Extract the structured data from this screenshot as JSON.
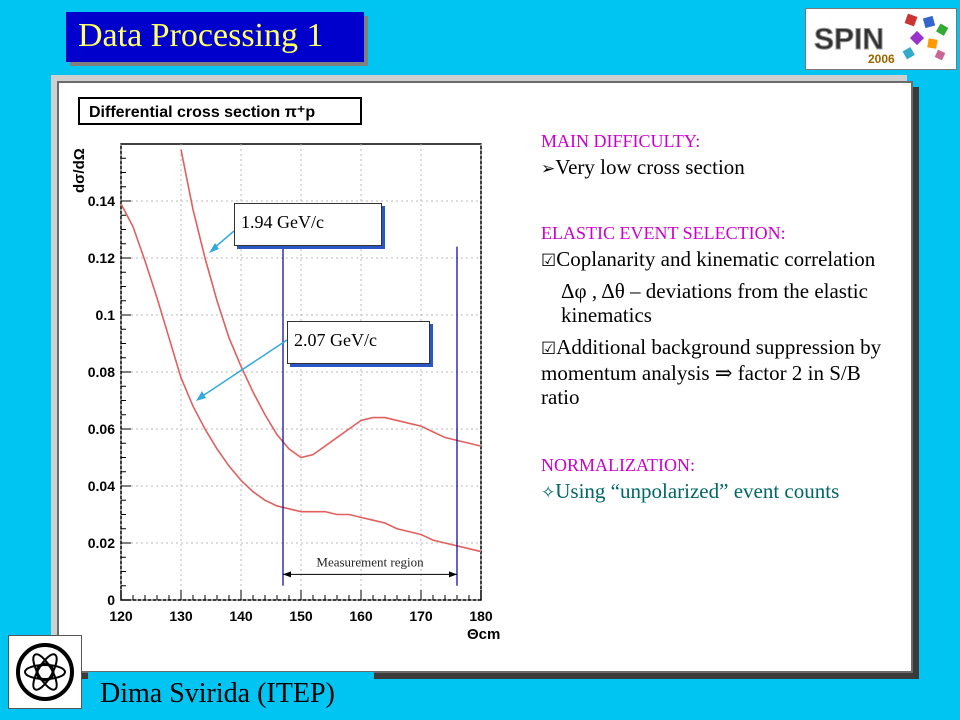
{
  "slide": {
    "title": "Data Processing 1",
    "logo_text": "SPIN",
    "logo_year": "2006",
    "footer": "Dima Svirida (ITEP)"
  },
  "chart_data": {
    "type": "line",
    "title": "Differential cross section π⁺p",
    "xlabel": "Θcm",
    "ylabel": "dσ/dΩ",
    "xlim": [
      120,
      180
    ],
    "ylim": [
      0,
      0.16
    ],
    "x_ticks": [
      "120",
      "130",
      "140",
      "150",
      "160",
      "170",
      "180"
    ],
    "y_ticks": [
      "0",
      "0.02",
      "0.04",
      "0.06",
      "0.08",
      "0.1",
      "0.12",
      "0.14"
    ],
    "grid": true,
    "series": [
      {
        "name": "1.94 GeV/c",
        "x": [
          130,
          132,
          134,
          136,
          138,
          140,
          142,
          144,
          146,
          148,
          150,
          152,
          154,
          156,
          158,
          160,
          162,
          164,
          166,
          168,
          170,
          172,
          174,
          176,
          178,
          180
        ],
        "y": [
          0.158,
          0.137,
          0.12,
          0.105,
          0.092,
          0.082,
          0.073,
          0.065,
          0.058,
          0.053,
          0.05,
          0.051,
          0.054,
          0.057,
          0.06,
          0.063,
          0.064,
          0.064,
          0.063,
          0.062,
          0.061,
          0.059,
          0.057,
          0.056,
          0.055,
          0.054
        ]
      },
      {
        "name": "2.07 GeV/c",
        "x": [
          120,
          122,
          124,
          126,
          128,
          130,
          132,
          134,
          136,
          138,
          140,
          142,
          144,
          146,
          148,
          150,
          152,
          154,
          156,
          158,
          160,
          162,
          164,
          166,
          168,
          170,
          172,
          174,
          176,
          178,
          180
        ],
        "y": [
          0.139,
          0.131,
          0.119,
          0.106,
          0.092,
          0.078,
          0.068,
          0.06,
          0.053,
          0.047,
          0.042,
          0.038,
          0.035,
          0.033,
          0.032,
          0.031,
          0.031,
          0.031,
          0.03,
          0.03,
          0.029,
          0.028,
          0.027,
          0.025,
          0.024,
          0.023,
          0.021,
          0.02,
          0.019,
          0.018,
          0.017
        ]
      }
    ],
    "measurement_region": {
      "label": "Measurement region",
      "x_range": [
        147,
        176
      ]
    },
    "colors": {
      "curves": "#e06060",
      "region_lines": "#000099",
      "grid": "#bbbbbb"
    }
  },
  "annotations": {
    "label_194": "1.94 GeV/c",
    "label_207": "2.07 GeV/c"
  },
  "text_panel": {
    "main_header": "MAIN DIFFICULTY:",
    "main_bullet": "Very low cross section",
    "elastic_header": "ELASTIC EVENT SELECTION:",
    "elastic_b1": "Coplanarity and kinematic correlation",
    "elastic_b1_line2": "Δφ , Δθ  – deviations from the elastic kinematics",
    "elastic_b2": "Additional background suppression by momentum analysis ⇒ factor 2 in S/B ratio",
    "norm_header": "NORMALIZATION:",
    "norm_bullet": "Using “unpolarized” event counts"
  }
}
